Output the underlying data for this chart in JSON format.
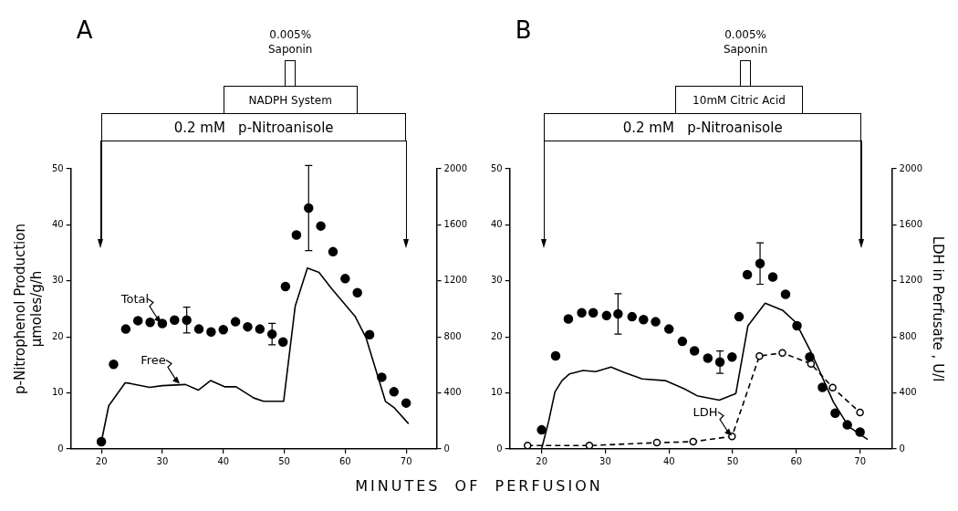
{
  "chart_data": [
    {
      "type": "line",
      "title": "A",
      "xlabel": "MINUTES  OF  PERFUSION",
      "ylabel": "p-Nitrophenol Production\nμmoles/g/h",
      "xlim": [
        15,
        75
      ],
      "xticks": [
        20,
        30,
        40,
        50,
        60,
        70
      ],
      "ylim": [
        0,
        50
      ],
      "yticks": [
        0,
        10,
        20,
        30,
        40,
        50
      ],
      "y2lim": [
        0,
        2000
      ],
      "y2ticks": [
        0,
        400,
        800,
        1200,
        1600,
        2000
      ],
      "series": [
        {
          "type": "scatter",
          "marker": "circle",
          "color": "#000000",
          "x": [
            20,
            22,
            24,
            26,
            28,
            30,
            32,
            34,
            36,
            38,
            40,
            42,
            44,
            46,
            48,
            49.8,
            50.2,
            52,
            54,
            56,
            58,
            60,
            62,
            64,
            66,
            68,
            70
          ],
          "values": [
            1.3,
            15.1,
            21.4,
            22.9,
            22.6,
            22.4,
            23.0,
            23.0,
            21.4,
            20.9,
            21.3,
            22.7,
            21.8,
            21.4,
            20.5,
            19.1,
            29.0,
            38.2,
            43.0,
            39.8,
            35.2,
            30.4,
            27.9,
            20.4,
            12.8,
            10.2,
            8.2
          ],
          "errors": [
            null,
            null,
            null,
            null,
            null,
            null,
            null,
            2.3,
            null,
            null,
            null,
            null,
            null,
            null,
            1.9,
            null,
            null,
            null,
            7.6,
            null,
            null,
            null,
            null,
            null,
            null,
            null,
            null
          ]
        },
        {
          "type": "line",
          "marker": "none",
          "line_style": "solid",
          "color": "#000000",
          "x": [
            20,
            21.2,
            23.9,
            24.7,
            27.9,
            30,
            33.8,
            35.9,
            37.9,
            40.2,
            42.1,
            45,
            46.6,
            49.9,
            51.8,
            53.8,
            55.7,
            57.8,
            61.6,
            63.4,
            66.6,
            68,
            70.4
          ],
          "values": [
            1.3,
            7.7,
            11.8,
            11.7,
            11.0,
            11.3,
            11.5,
            10.5,
            12.2,
            11.1,
            11.1,
            9.1,
            8.5,
            8.5,
            25.5,
            32.3,
            31.5,
            28.6,
            23.7,
            19.9,
            8.5,
            7.4,
            4.5
          ]
        }
      ],
      "annotations": [
        "0.2 mM   p-Nitroanisole",
        "NADPH System",
        "0.005%\nSaponin",
        {
          "text": "Total",
          "x": 30,
          "y": 22.4
        },
        {
          "text": "Free",
          "x": 33,
          "y": 11.5
        }
      ]
    },
    {
      "type": "line",
      "title": "B",
      "y2label": "LDH in Perfusate , U/l",
      "xlim": [
        15,
        75
      ],
      "xticks": [
        20,
        30,
        40,
        50,
        60,
        70
      ],
      "ylim": [
        0,
        50
      ],
      "yticks": [
        0,
        10,
        20,
        30,
        40,
        50
      ],
      "y2lim": [
        0,
        2000
      ],
      "y2ticks": [
        0,
        400,
        800,
        1200,
        1600,
        2000
      ],
      "series": [
        {
          "type": "scatter",
          "marker": "circle",
          "color": "#000000",
          "x": [
            20,
            22.2,
            24.2,
            26.3,
            28.1,
            30.2,
            32,
            34.2,
            36,
            37.9,
            40,
            42.1,
            44,
            46.1,
            48,
            49.9,
            51,
            52.3,
            54.3,
            56.3,
            58.3,
            60.1,
            62.1,
            64.1,
            66.1,
            68,
            70
          ],
          "values": [
            3.4,
            16.6,
            23.2,
            24.3,
            24.3,
            23.8,
            24.1,
            23.6,
            23.1,
            22.7,
            21.4,
            19.2,
            17.5,
            16.2,
            15.5,
            16.4,
            23.6,
            31.1,
            33.1,
            30.7,
            27.6,
            22.0,
            16.4,
            11.0,
            6.4,
            4.3,
            3.0
          ],
          "errors": [
            null,
            null,
            null,
            null,
            null,
            null,
            3.6,
            null,
            null,
            null,
            null,
            null,
            null,
            null,
            2.0,
            null,
            null,
            null,
            3.7,
            null,
            null,
            null,
            null,
            null,
            null,
            null,
            null
          ]
        },
        {
          "type": "line",
          "marker": "none",
          "line_style": "solid",
          "color": "#000000",
          "x": [
            20,
            21.1,
            22.1,
            23.2,
            24.4,
            26.5,
            28.5,
            30.9,
            32.9,
            35.8,
            39.4,
            42.3,
            44.4,
            47.9,
            50.5,
            52.4,
            55.1,
            57.9,
            59.9,
            62.3,
            65.8,
            68.2,
            71.2
          ],
          "values": [
            0,
            4.9,
            10.2,
            12.2,
            13.4,
            14.0,
            13.8,
            14.6,
            13.7,
            12.5,
            12.2,
            10.8,
            9.5,
            8.7,
            9.9,
            22.0,
            26.0,
            24.7,
            22.6,
            17.3,
            8.4,
            4.0,
            1.7
          ]
        },
        {
          "type": "line",
          "axis": "y2",
          "marker": "circle",
          "line_style": "dashed",
          "color": "#000000",
          "x": [
            17.8,
            27.5,
            38.1,
            43.8,
            49.9,
            54.2,
            57.8,
            62.3,
            65.7,
            70
          ],
          "values": [
            24,
            24,
            45,
            52,
            90,
            663,
            686,
            608,
            438,
            260
          ]
        }
      ],
      "annotations": [
        "0.2 mM   p-Nitroanisole",
        "10mM Citric Acid",
        "0.005%\nSaponin",
        {
          "text": "LDH",
          "x": 50,
          "y": 2.2
        }
      ]
    }
  ]
}
